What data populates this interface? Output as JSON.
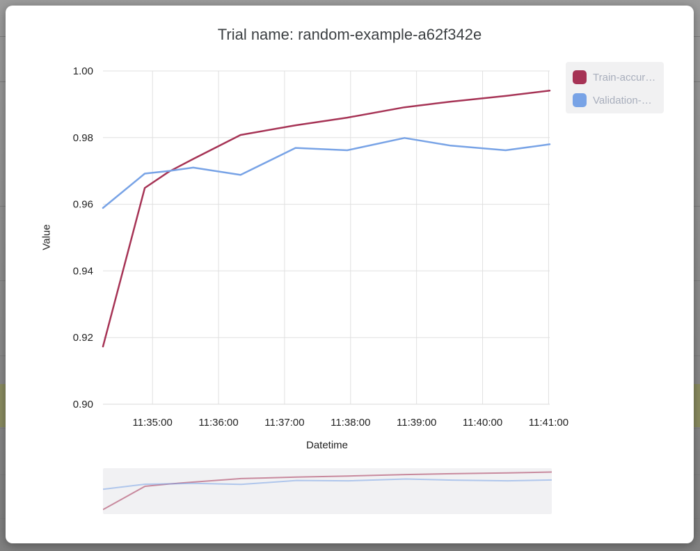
{
  "page": {
    "title": "Trial name: random-example-a62f342e"
  },
  "chart_data": {
    "type": "line",
    "title": "Trial name: random-example-a62f342e",
    "xlabel": "Datetime",
    "ylabel": "Value",
    "grid": true,
    "legend_position": "outside-top-right",
    "ylim": [
      0.9,
      1.0
    ],
    "y_ticks": [
      "1.00",
      "0.98",
      "0.96",
      "0.94",
      "0.92",
      "0.90"
    ],
    "x_ticks": [
      "11:35:00",
      "11:36:00",
      "11:37:00",
      "11:38:00",
      "11:39:00",
      "11:40:00",
      "11:41:00"
    ],
    "x_domain": [
      "11:34:15",
      "11:41:01"
    ],
    "x": [
      "11:34:15",
      "11:34:53",
      "11:35:15",
      "11:35:37",
      "11:36:20",
      "11:37:10",
      "11:37:57",
      "11:38:49",
      "11:39:31",
      "11:40:21",
      "11:41:01"
    ],
    "series": [
      {
        "name": "Train-accur…",
        "color": "#a63355",
        "values": [
          0.9173,
          0.9649,
          0.9698,
          0.9736,
          0.9808,
          0.9837,
          0.986,
          0.9891,
          0.9908,
          0.9925,
          0.9941
        ]
      },
      {
        "name": "Validation-…",
        "color": "#78a3e6",
        "values": [
          0.9589,
          0.9692,
          0.97,
          0.971,
          0.9688,
          0.9769,
          0.9762,
          0.9799,
          0.9776,
          0.9762,
          0.978
        ]
      }
    ],
    "navigator": true
  },
  "style_colors": {
    "gridline": "#e0e0e0",
    "axis_line": "#d9d9d9",
    "tick_text": "#222222",
    "title_text": "#3c4043",
    "legend_bg": "#f1f1f2",
    "legend_text": "#a8aebc",
    "card_bg": "#ffffff",
    "overlay_bg": "#8f8f8f",
    "background_highlight_row": "#8a8c60",
    "minimap_bg": "#f1f1f3"
  }
}
